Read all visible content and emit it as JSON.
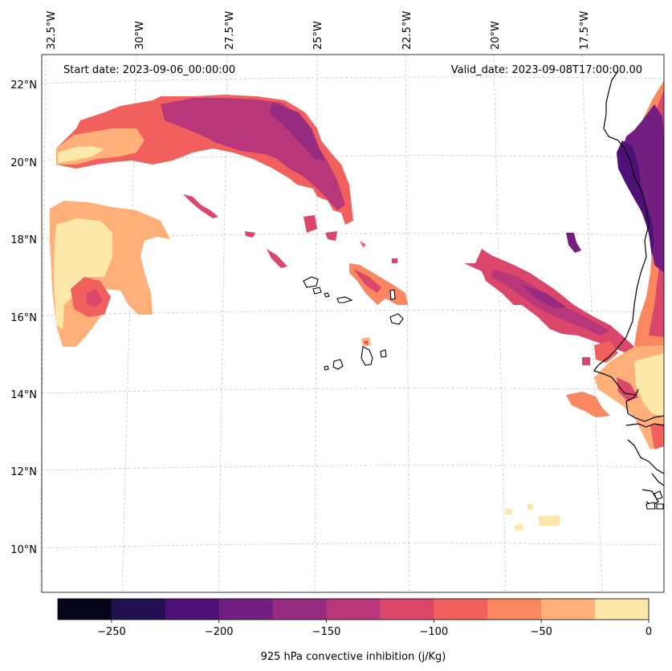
{
  "map": {
    "start_label": "Start date: 2023-09-06_00:00:00",
    "valid_label": "Valid_date: 2023-09-08T17:00:00.00",
    "lon_labels": [
      "32.5°W",
      "30°W",
      "27.5°W",
      "25°W",
      "22.5°W",
      "20°W",
      "17.5°W"
    ],
    "lat_labels": [
      "22°N",
      "20°N",
      "18°N",
      "16°N",
      "14°N",
      "12°N",
      "10°N"
    ],
    "variable_label": "925 hPa convective inhibition (j/Kg)"
  },
  "colorbar": {
    "ticks": [
      "−250",
      "−200",
      "−150",
      "−100",
      "−50",
      "0"
    ],
    "levels": [
      -275,
      -250,
      -225,
      -200,
      -175,
      -150,
      -125,
      -100,
      -75,
      -50,
      -25,
      0
    ],
    "colors": [
      "#07051a",
      "#221150",
      "#4e1178",
      "#721f81",
      "#962b80",
      "#b8367a",
      "#db476b",
      "#f1605d",
      "#fb8761",
      "#feb078",
      "#fde7a9"
    ]
  }
}
